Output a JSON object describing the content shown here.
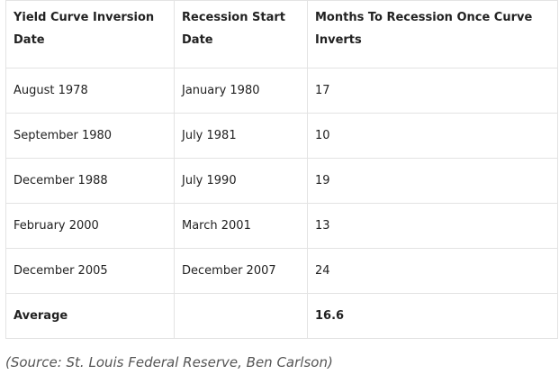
{
  "table": {
    "headers": [
      "Yield Curve Inversion Date",
      "Recession Start Date",
      "Months To Recession Once Curve Inverts"
    ],
    "rows": [
      [
        "August 1978",
        "January 1980",
        "17"
      ],
      [
        "September 1980",
        "July 1981",
        "10"
      ],
      [
        "December 1988",
        "July 1990",
        "19"
      ],
      [
        "February 2000",
        "March 2001",
        "13"
      ],
      [
        "December 2005",
        "December 2007",
        "24"
      ]
    ],
    "average": {
      "label": "Average",
      "blank": "",
      "value": "16.6"
    }
  },
  "source": "(Source: St. Louis Federal Reserve, Ben Carlson)"
}
